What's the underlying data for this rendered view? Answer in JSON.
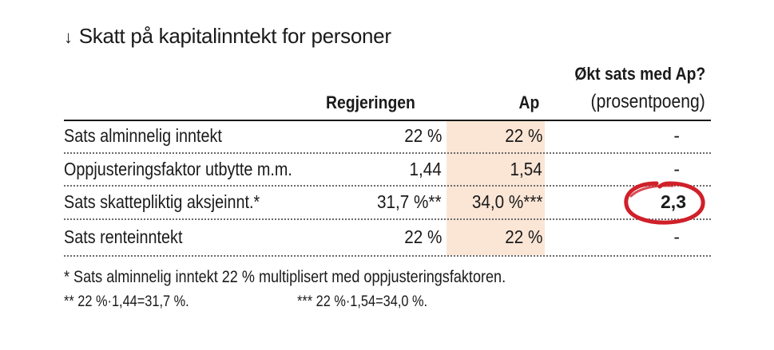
{
  "title": {
    "icon": "arrow-down-icon",
    "text": "Skatt på kapitalinntekt for personer"
  },
  "columns": {
    "regjeringen": "Regjeringen",
    "ap": "Ap",
    "okt_title": "Økt sats med Ap?",
    "okt_subtitle": "(prosentpoeng)"
  },
  "rows": [
    {
      "label": "Sats alminnelig inntekt",
      "regjeringen": "22 %",
      "ap": "22 %",
      "okt": "-"
    },
    {
      "label": "Oppjusteringsfaktor utbytte m.m.",
      "regjeringen": "1,44",
      "ap": "1,54",
      "okt": "-"
    },
    {
      "label": "Sats skattepliktig aksjeinnt.*",
      "regjeringen": "31,7 %**",
      "ap": "34,0 %***",
      "okt": "2,3"
    },
    {
      "label": "Sats renteinntekt",
      "regjeringen": "22 %",
      "ap": "22 %",
      "okt": "-"
    }
  ],
  "footnotes": {
    "note1": "* Sats alminnelig inntekt 22 % multiplisert med oppjusteringsfaktoren.",
    "note2": "** 22 %·1,44=31,7 %.",
    "note3": "*** 22 %·1,54=34,0 %."
  },
  "colors": {
    "ap_column_highlight": "#fbe6d6",
    "annotation_circle": "#d0202a",
    "text": "#1a1a1a"
  }
}
